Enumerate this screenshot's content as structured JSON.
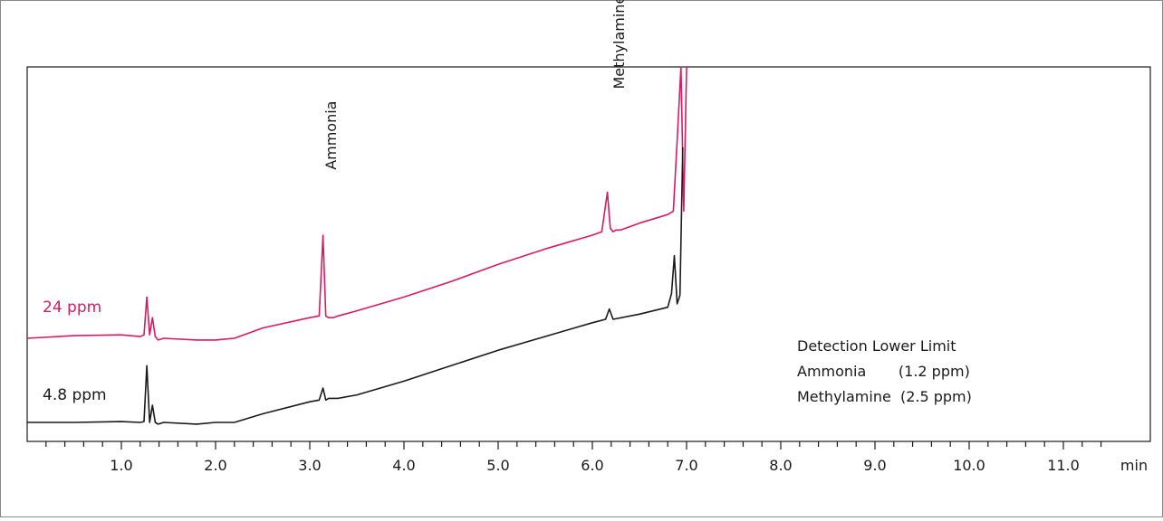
{
  "chart_data": {
    "type": "line",
    "xunit": "min",
    "xlim": [
      0,
      11.4
    ],
    "x_ticks": [
      "1.0",
      "2.0",
      "3.0",
      "4.0",
      "5.0",
      "6.0",
      "7.0",
      "8.0",
      "9.0",
      "10.0",
      "11.0"
    ],
    "x_tick_values": [
      1,
      2,
      3,
      4,
      5,
      6,
      7,
      8,
      9,
      10,
      11
    ],
    "minor_tick_step": 0.2,
    "grid": false,
    "legend": "none",
    "series": [
      {
        "name": "24 ppm",
        "color": "#d81b60",
        "x": [
          0.0,
          0.5,
          1.0,
          1.2,
          1.24,
          1.27,
          1.3,
          1.33,
          1.36,
          1.39,
          1.45,
          1.8,
          2.0,
          2.2,
          2.5,
          3.0,
          3.1,
          3.14,
          3.17,
          3.2,
          3.25,
          3.3,
          3.5,
          4.0,
          4.5,
          5.0,
          5.5,
          6.0,
          6.1,
          6.16,
          6.19,
          6.22,
          6.25,
          6.3,
          6.5,
          6.8,
          6.86,
          6.9,
          6.94,
          6.97,
          7.0
        ],
        "y": [
          0.0,
          0.015,
          0.02,
          0.01,
          0.02,
          0.24,
          0.02,
          0.12,
          0.01,
          -0.01,
          0.0,
          -0.01,
          -0.01,
          0.0,
          0.06,
          0.12,
          0.13,
          0.6,
          0.13,
          0.12,
          0.12,
          0.13,
          0.16,
          0.24,
          0.33,
          0.43,
          0.52,
          0.6,
          0.62,
          0.85,
          0.64,
          0.62,
          0.63,
          0.63,
          0.67,
          0.72,
          0.74,
          1.15,
          1.6,
          0.74,
          1.7
        ]
      },
      {
        "name": "4.8 ppm",
        "color": "#1a1a1a",
        "x": [
          0.0,
          0.5,
          1.0,
          1.2,
          1.24,
          1.27,
          1.3,
          1.33,
          1.36,
          1.39,
          1.45,
          1.8,
          2.0,
          2.2,
          2.5,
          3.0,
          3.1,
          3.14,
          3.17,
          3.2,
          3.3,
          3.5,
          4.0,
          4.5,
          5.0,
          5.5,
          6.0,
          6.14,
          6.18,
          6.22,
          6.5,
          6.8,
          6.84,
          6.87,
          6.9,
          6.93,
          6.96
        ],
        "y": [
          0.0,
          0.0,
          0.005,
          0.0,
          0.005,
          0.33,
          0.0,
          0.1,
          0.0,
          -0.01,
          0.0,
          -0.01,
          0.0,
          0.0,
          0.05,
          0.12,
          0.13,
          0.2,
          0.13,
          0.14,
          0.14,
          0.16,
          0.24,
          0.33,
          0.42,
          0.5,
          0.58,
          0.6,
          0.66,
          0.6,
          0.63,
          0.67,
          0.75,
          0.97,
          0.69,
          0.74,
          1.6
        ]
      }
    ],
    "annotations": [
      {
        "text": "Ammonia",
        "x": 3.22,
        "y": 0.98
      },
      {
        "text": "Methylamine",
        "x": 6.28,
        "y": 1.45
      }
    ]
  },
  "trace_labels": {
    "upper": "24 ppm",
    "lower": "4.8 ppm"
  },
  "note": {
    "title": "Detection Lower Limit",
    "line1": "Ammonia       (1.2 ppm)",
    "line2": "Methylamine  (2.5 ppm)"
  }
}
